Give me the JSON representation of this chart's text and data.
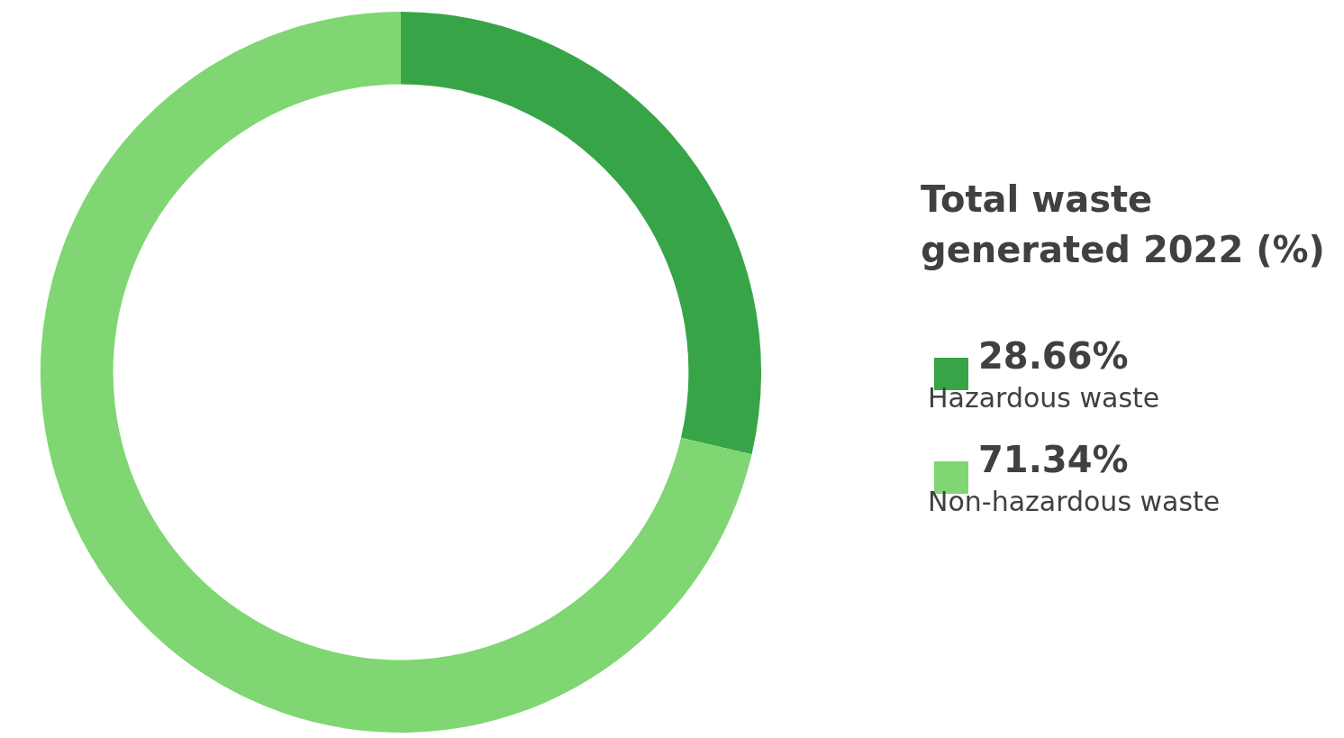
{
  "chart_data": {
    "type": "donut",
    "title": "Total waste generated 2022 (%)",
    "categories": [
      "Hazardous waste",
      "Non-hazardous waste"
    ],
    "values": [
      28.66,
      71.34
    ],
    "colors": [
      "#37a547",
      "#7fd672"
    ],
    "value_labels": [
      "28.66%",
      "71.34%"
    ],
    "legend": "right"
  }
}
